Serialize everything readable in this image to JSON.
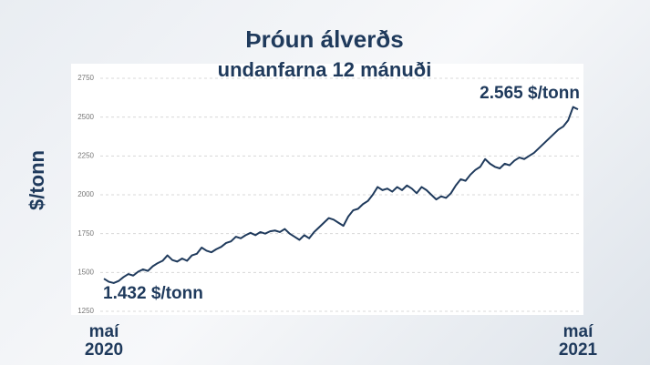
{
  "chart_data": {
    "type": "line",
    "title": "Þróun álverðs",
    "subtitle": "undanfarna 12 mánuði",
    "y_label": "$/tonn",
    "annotations": [
      "1.432 $/tonn",
      "2.565 $/tonn"
    ],
    "categories": [
      "maí\n2020",
      null,
      null,
      null,
      null,
      null,
      null,
      null,
      null,
      null,
      null,
      null,
      null,
      null,
      null,
      null,
      null,
      null,
      null,
      null,
      null,
      null,
      null,
      null,
      null,
      null,
      null,
      null,
      null,
      null,
      null,
      null,
      null,
      null,
      null,
      null,
      null,
      null,
      null,
      null,
      null,
      null,
      null,
      null,
      null,
      null,
      null,
      null,
      null,
      null,
      null,
      null,
      null,
      null,
      null,
      null,
      null,
      null,
      null,
      null,
      null,
      null,
      null,
      null,
      null,
      null,
      null,
      null,
      null,
      null,
      null,
      null,
      null,
      null,
      null,
      null,
      null,
      null,
      null,
      null,
      null,
      null,
      null,
      null,
      null,
      null,
      null,
      null,
      null,
      null,
      null,
      null,
      null,
      null,
      null,
      null,
      null,
      "maí\n2021"
    ],
    "values": [
      1460,
      1440,
      1432,
      1445,
      1470,
      1490,
      1480,
      1505,
      1520,
      1510,
      1540,
      1560,
      1575,
      1610,
      1580,
      1570,
      1590,
      1575,
      1610,
      1620,
      1660,
      1640,
      1630,
      1650,
      1665,
      1690,
      1700,
      1730,
      1720,
      1740,
      1755,
      1740,
      1760,
      1750,
      1765,
      1770,
      1760,
      1780,
      1750,
      1730,
      1710,
      1740,
      1720,
      1760,
      1790,
      1820,
      1850,
      1840,
      1820,
      1800,
      1860,
      1900,
      1910,
      1940,
      1960,
      2000,
      2050,
      2030,
      2040,
      2020,
      2050,
      2030,
      2060,
      2040,
      2010,
      2050,
      2030,
      2000,
      1970,
      1990,
      1980,
      2010,
      2060,
      2100,
      2090,
      2130,
      2160,
      2180,
      2230,
      2200,
      2180,
      2170,
      2200,
      2190,
      2220,
      2240,
      2230,
      2250,
      2270,
      2300,
      2330,
      2360,
      2390,
      2420,
      2440,
      2480,
      2565,
      2550
    ],
    "color": "#1f3a5c",
    "ylim": [
      1250,
      2750
    ],
    "yticks": [
      1250,
      1500,
      1750,
      2000,
      2250,
      2500,
      2750
    ],
    "grid": true
  }
}
